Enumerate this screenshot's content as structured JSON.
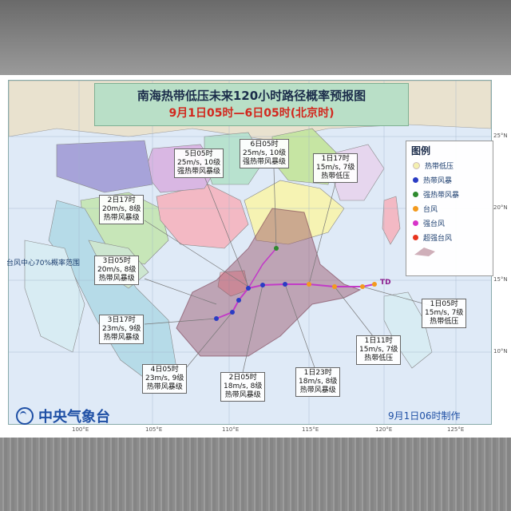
{
  "title": "南海热带低压未来120小时路径概率预报图",
  "subtitle": "9月1日05时—6日05时(北京时)",
  "agency": "中央气象台",
  "made_time": "9月1日06时制作",
  "td_mark": "TD",
  "legend": {
    "title": "图例",
    "items": [
      {
        "label": "热带低压",
        "color": "#f4f0b0"
      },
      {
        "label": "热带风暴",
        "color": "#2a3cc4"
      },
      {
        "label": "强热带风暴",
        "color": "#2e8a2e"
      },
      {
        "label": "台风",
        "color": "#f39a1e"
      },
      {
        "label": "强台风",
        "color": "#d733c9"
      },
      {
        "label": "超强台风",
        "color": "#e8331e"
      }
    ],
    "area_label": "台风中心70%概率范围"
  },
  "forecast_labels": [
    {
      "time": "5日05时",
      "wind": "25m/s, 10级",
      "category": "强热带风暴级"
    },
    {
      "time": "6日05时",
      "wind": "25m/s, 10级",
      "category": "强热带风暴级"
    },
    {
      "time": "1日17时",
      "wind": "15m/s, 7级",
      "category": "热带低压"
    },
    {
      "time": "2日17时",
      "wind": "20m/s, 8级",
      "category": "热带风暴级"
    },
    {
      "time": "3日05时",
      "wind": "20m/s, 8级",
      "category": "热带风暴级"
    },
    {
      "time": "3日17时",
      "wind": "23m/s, 9级",
      "category": "热带风暴级"
    },
    {
      "time": "4日05时",
      "wind": "23m/s, 9级",
      "category": "热带风暴级"
    },
    {
      "time": "2日05时",
      "wind": "18m/s, 8级",
      "category": "热带风暴级"
    },
    {
      "time": "1日23时",
      "wind": "18m/s, 8级",
      "category": "热带风暴级"
    },
    {
      "time": "1日11时",
      "wind": "15m/s, 7级",
      "category": "热带低压"
    },
    {
      "time": "1日05时",
      "wind": "15m/s, 7级",
      "category": "热带低压"
    }
  ],
  "lon_labels": [
    "100°E",
    "105°E",
    "110°E",
    "115°E",
    "120°E",
    "125°E"
  ],
  "lat_labels": [
    "25°N",
    "20°N",
    "15°N",
    "10°N"
  ]
}
